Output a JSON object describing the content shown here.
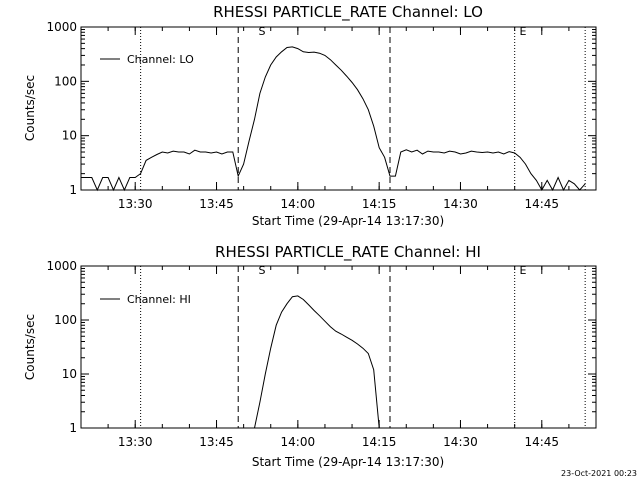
{
  "timestamp": "23-Oct-2021 00:23",
  "chart_data": [
    {
      "type": "line",
      "title": "RHESSI PARTICLE_RATE Channel: LO",
      "xlabel": "Start Time (29-Apr-14 13:17:30)",
      "ylabel": "Counts/sec",
      "legend": "Channel: LO",
      "legend_position": "top-left",
      "yscale": "log",
      "ylim": [
        1,
        1000
      ],
      "yticks": [
        1,
        10,
        100,
        1000
      ],
      "ytick_labels": [
        "1",
        "10",
        "100",
        "1000"
      ],
      "xlim": [
        "13:20",
        "14:55"
      ],
      "xtick_labels": [
        "13:30",
        "13:45",
        "14:00",
        "14:15",
        "14:30",
        "14:45"
      ],
      "marker_labels": [
        "S",
        "E"
      ],
      "dashed_lines": [
        "13:49",
        "14:17"
      ],
      "dotted_lines": [
        "13:31",
        "14:40",
        "14:53"
      ],
      "series": [
        {
          "name": "Channel: LO",
          "x": [
            "13:20",
            "13:21",
            "13:22",
            "13:23",
            "13:24",
            "13:25",
            "13:26",
            "13:27",
            "13:28",
            "13:29",
            "13:30",
            "13:31",
            "13:32",
            "13:33",
            "13:34",
            "13:35",
            "13:36",
            "13:37",
            "13:38",
            "13:39",
            "13:40",
            "13:41",
            "13:42",
            "13:43",
            "13:44",
            "13:45",
            "13:46",
            "13:47",
            "13:48",
            "13:49",
            "13:50",
            "13:51",
            "13:52",
            "13:53",
            "13:54",
            "13:55",
            "13:56",
            "13:57",
            "13:58",
            "13:59",
            "14:00",
            "14:01",
            "14:02",
            "14:03",
            "14:04",
            "14:05",
            "14:06",
            "14:07",
            "14:08",
            "14:09",
            "14:10",
            "14:11",
            "14:12",
            "14:13",
            "14:14",
            "14:15",
            "14:16",
            "14:17",
            "14:18",
            "14:19",
            "14:20",
            "14:21",
            "14:22",
            "14:23",
            "14:24",
            "14:25",
            "14:26",
            "14:27",
            "14:28",
            "14:29",
            "14:30",
            "14:31",
            "14:32",
            "14:33",
            "14:34",
            "14:35",
            "14:36",
            "14:37",
            "14:38",
            "14:39",
            "14:40",
            "14:41",
            "14:42",
            "14:43",
            "14:44",
            "14:45",
            "14:46",
            "14:47",
            "14:48",
            "14:49",
            "14:50",
            "14:51",
            "14:52",
            "14:53"
          ],
          "y": [
            1.7,
            1.7,
            1.7,
            1,
            1.7,
            1.7,
            1,
            1.7,
            1,
            1.7,
            1.7,
            2,
            3.5,
            4,
            4.5,
            5,
            4.8,
            5.2,
            5,
            5,
            4.6,
            5.4,
            5,
            5,
            4.8,
            5,
            4.6,
            5,
            5,
            1.8,
            3,
            8,
            20,
            60,
            120,
            200,
            280,
            350,
            420,
            430,
            400,
            350,
            340,
            345,
            330,
            300,
            250,
            200,
            160,
            125,
            95,
            70,
            48,
            30,
            15,
            6,
            4,
            1.8,
            1.8,
            5,
            5.5,
            5,
            5.4,
            4.6,
            5.2,
            5,
            5,
            4.8,
            5.2,
            5,
            4.6,
            4.8,
            5.2,
            5,
            4.9,
            5,
            4.8,
            5,
            4.6,
            5.1,
            4.8,
            4,
            3,
            2,
            1.5,
            1,
            1.5,
            1,
            1.7,
            1,
            1.5,
            1.3,
            1,
            1.3
          ]
        }
      ]
    },
    {
      "type": "line",
      "title": "RHESSI PARTICLE_RATE Channel: HI",
      "xlabel": "Start Time (29-Apr-14 13:17:30)",
      "ylabel": "Counts/sec",
      "legend": "Channel: HI",
      "legend_position": "top-left",
      "yscale": "log",
      "ylim": [
        1,
        1000
      ],
      "yticks": [
        1,
        10,
        100,
        1000
      ],
      "ytick_labels": [
        "1",
        "10",
        "100",
        "1000"
      ],
      "xlim": [
        "13:20",
        "14:55"
      ],
      "xtick_labels": [
        "13:30",
        "13:45",
        "14:00",
        "14:15",
        "14:30",
        "14:45"
      ],
      "marker_labels": [
        "S",
        "E"
      ],
      "dashed_lines": [
        "13:49",
        "14:17"
      ],
      "dotted_lines": [
        "13:31",
        "14:40",
        "14:53"
      ],
      "series": [
        {
          "name": "Channel: HI",
          "x": [
            "13:52",
            "13:53",
            "13:54",
            "13:55",
            "13:56",
            "13:57",
            "13:58",
            "13:59",
            "14:00",
            "14:01",
            "14:02",
            "14:03",
            "14:04",
            "14:05",
            "14:06",
            "14:07",
            "14:08",
            "14:09",
            "14:10",
            "14:11",
            "14:12",
            "14:13",
            "14:14",
            "14:15"
          ],
          "y": [
            1,
            3,
            10,
            30,
            80,
            140,
            200,
            270,
            280,
            240,
            190,
            150,
            120,
            95,
            75,
            62,
            55,
            48,
            42,
            36,
            30,
            24,
            12,
            1
          ]
        }
      ]
    }
  ]
}
